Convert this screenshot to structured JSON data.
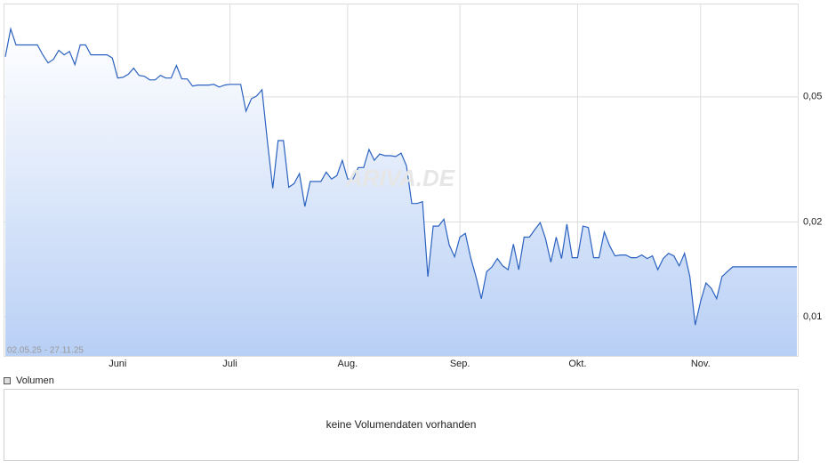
{
  "chart_data": {
    "type": "line",
    "log_scale": true,
    "grid": true,
    "color": "#2b62c0",
    "date_range": "02.05.25 - 27.11.25",
    "watermark": "ARIVA.DE",
    "ylim": [
      0.0075,
      0.099
    ],
    "yticks": [
      {
        "value": 0.01,
        "label": "0,01"
      },
      {
        "value": 0.02,
        "label": "0,02"
      },
      {
        "value": 0.05,
        "label": "0,05"
      }
    ],
    "categories": [
      null,
      null,
      null,
      null,
      null,
      null,
      null,
      null,
      null,
      null,
      null,
      null,
      null,
      null,
      null,
      null,
      null,
      null,
      null,
      null,
      null,
      "Juni",
      null,
      null,
      null,
      null,
      null,
      null,
      null,
      null,
      null,
      null,
      null,
      null,
      null,
      null,
      null,
      null,
      null,
      null,
      null,
      null,
      "Juli",
      null,
      null,
      null,
      null,
      null,
      null,
      null,
      null,
      null,
      null,
      null,
      null,
      null,
      null,
      null,
      null,
      null,
      null,
      null,
      null,
      null,
      "Aug.",
      null,
      null,
      null,
      null,
      null,
      null,
      null,
      null,
      null,
      null,
      null,
      null,
      null,
      null,
      null,
      null,
      null,
      null,
      null,
      null,
      "Sep.",
      null,
      null,
      null,
      null,
      null,
      null,
      null,
      null,
      null,
      null,
      null,
      null,
      null,
      null,
      null,
      null,
      null,
      null,
      null,
      null,
      null,
      "Okt.",
      null,
      null,
      null,
      null,
      null,
      null,
      null,
      null,
      null,
      null,
      null,
      null,
      null,
      null,
      null,
      null,
      null,
      null,
      null,
      null,
      null,
      null,
      "Nov.",
      null,
      null,
      null,
      null,
      null,
      null,
      null,
      null,
      null,
      null,
      null,
      null,
      null,
      null,
      null,
      null,
      null,
      null
    ],
    "values": [
      0.0671,
      0.0822,
      0.0731,
      0.0731,
      0.0731,
      0.0731,
      0.0731,
      0.068,
      0.0641,
      0.0658,
      0.0703,
      0.068,
      0.0697,
      0.0633,
      0.0731,
      0.0731,
      0.068,
      0.068,
      0.068,
      0.068,
      0.0665,
      0.0574,
      0.0577,
      0.059,
      0.0617,
      0.0585,
      0.0581,
      0.0566,
      0.0566,
      0.0585,
      0.0574,
      0.0574,
      0.0629,
      0.057,
      0.057,
      0.0541,
      0.0545,
      0.0545,
      0.0545,
      0.0548,
      0.0537,
      0.0545,
      0.0548,
      0.0548,
      0.0548,
      0.045,
      0.0493,
      0.0503,
      0.0527,
      0.036,
      0.0256,
      0.0363,
      0.0363,
      0.0258,
      0.0265,
      0.0285,
      0.0224,
      0.0269,
      0.0269,
      0.0269,
      0.0288,
      0.0274,
      0.0281,
      0.0314,
      0.0274,
      0.0274,
      0.0298,
      0.0298,
      0.034,
      0.0314,
      0.0329,
      0.0325,
      0.0325,
      0.0323,
      0.0331,
      0.0302,
      0.0229,
      0.0229,
      0.0232,
      0.0134,
      0.0194,
      0.0194,
      0.0204,
      0.0169,
      0.0155,
      0.0179,
      0.0184,
      0.0154,
      0.0134,
      0.0114,
      0.0139,
      0.0144,
      0.0153,
      0.0145,
      0.0141,
      0.017,
      0.0141,
      0.0179,
      0.0179,
      0.0189,
      0.0199,
      0.0177,
      0.0149,
      0.0179,
      0.0153,
      0.0197,
      0.0154,
      0.0154,
      0.0194,
      0.0192,
      0.0154,
      0.0154,
      0.0186,
      0.0168,
      0.0156,
      0.0157,
      0.0157,
      0.0154,
      0.0154,
      0.0157,
      0.0153,
      0.0156,
      0.0141,
      0.0153,
      0.0159,
      0.0156,
      0.0145,
      0.0159,
      0.0134,
      0.0094,
      0.0112,
      0.0128,
      0.0123,
      0.0114,
      0.0134,
      0.0139,
      0.0144,
      0.0144,
      0.0144,
      0.0144,
      0.0144,
      0.0144,
      0.0144,
      0.0144,
      0.0144,
      0.0144,
      0.0144,
      0.0144,
      0.0144
    ]
  },
  "volume_panel": {
    "legend": "Volumen",
    "message": "keine Volumendaten vorhanden"
  }
}
